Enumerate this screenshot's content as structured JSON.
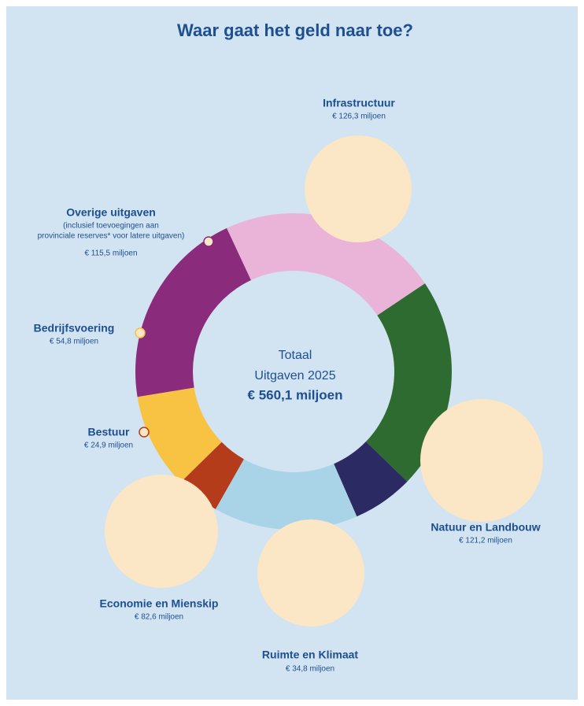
{
  "chart_data": {
    "type": "donut",
    "title": "Waar gaat het geld naar toe?",
    "center_text": [
      "Totaal",
      "Uitgaven 2025",
      "€ 560,1 miljoen"
    ],
    "categories": [
      "Infrastructuur",
      "Natuur en Landbouw",
      "Ruimte en Klimaat",
      "Economie en Mienskip",
      "Bestuur",
      "Bedrijfsvoering",
      "Overige uitgaven"
    ],
    "values": [
      126.3,
      121.2,
      34.8,
      82.6,
      24.9,
      54.8,
      115.5
    ],
    "value_labels": [
      "€ 126,3 miljoen",
      "€ 121,2 miljoen",
      "€ 34,8 miljoen",
      "€ 82,6 miljoen",
      "€ 24,9 miljoen",
      "€ 54,8 miljoen",
      "€ 115,5 miljoen"
    ],
    "colors": [
      "#eab4d8",
      "#2e6b30",
      "#2b2a62",
      "#a9d3e6",
      "#b43c1b",
      "#f8c242",
      "#8b2b7b"
    ],
    "annotations": [
      "(inclusief toevoegingen aan",
      "provinciale reserves* voor latere uitgaven)"
    ]
  }
}
